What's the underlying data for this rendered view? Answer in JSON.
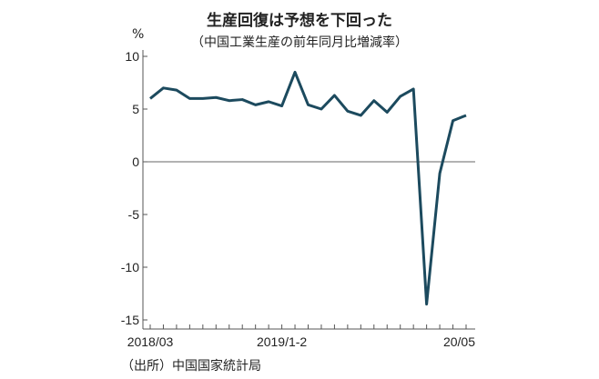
{
  "chart_data": {
    "type": "line",
    "title": "生産回復は予想を下回った",
    "subtitle": "（中国工業生産の前年同月比増減率）",
    "ylabel": "%",
    "source": "（出所）中国国家統計局",
    "ylim": [
      -15,
      10
    ],
    "yticks": [
      10,
      5,
      0,
      -5,
      -10,
      -15
    ],
    "xtick_labels": [
      "2018/03",
      "2019/1-2",
      "20/05"
    ],
    "x": [
      "2018/03",
      "2018/04",
      "2018/05",
      "2018/06",
      "2018/07",
      "2018/08",
      "2018/09",
      "2018/10",
      "2018/11",
      "2018/12",
      "2019/1-2",
      "2019/03",
      "2019/04",
      "2019/05",
      "2019/06",
      "2019/07",
      "2019/08",
      "2019/09",
      "2019/10",
      "2019/11",
      "2019/12",
      "2020/1-2",
      "2020/03",
      "2020/04",
      "2020/05"
    ],
    "values": [
      6.0,
      7.0,
      6.8,
      6.0,
      6.0,
      6.1,
      5.8,
      5.9,
      5.4,
      5.7,
      5.3,
      8.5,
      5.4,
      5.0,
      6.3,
      4.8,
      4.4,
      5.8,
      4.7,
      6.2,
      6.9,
      -13.5,
      -1.1,
      3.9,
      4.4
    ],
    "line_color": "#1c4a5e",
    "grid": false
  }
}
